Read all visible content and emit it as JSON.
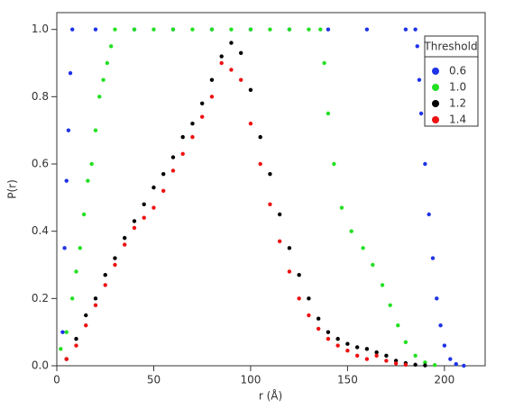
{
  "chart_data": {
    "type": "scatter",
    "x_label": "r (Å)",
    "y_label": "P(r)",
    "xlim": [
      0,
      221
    ],
    "ylim": [
      0,
      1.05
    ],
    "xticks": [
      0,
      50,
      100,
      150,
      200
    ],
    "yticks": [
      {
        "value": 0,
        "label": "0.0"
      },
      0.2,
      0.4,
      0.6,
      0.8,
      {
        "value": 1,
        "label": "1.0"
      }
    ],
    "legend_title": "Threshold",
    "legend_position": "upper right",
    "series": [
      {
        "name": "0.6",
        "color": "#1f33e6",
        "x": [
          3,
          4,
          5,
          6,
          7,
          8,
          20,
          40,
          60,
          80,
          100,
          120,
          140,
          160,
          180,
          185,
          186,
          187,
          188,
          190,
          192,
          194,
          196,
          198,
          200,
          203,
          206,
          210
        ],
        "values": [
          0.1,
          0.35,
          0.55,
          0.7,
          0.87,
          1,
          1,
          1,
          1,
          1,
          1,
          1,
          1,
          1,
          1,
          1,
          0.95,
          0.85,
          0.75,
          0.6,
          0.45,
          0.32,
          0.2,
          0.12,
          0.06,
          0.02,
          0.005,
          0
        ]
      },
      {
        "name": "1.0",
        "color": "#22e022",
        "x": [
          2,
          5,
          8,
          10,
          12,
          14,
          16,
          18,
          20,
          22,
          24,
          26,
          28,
          30,
          40,
          50,
          60,
          70,
          80,
          90,
          100,
          110,
          120,
          130,
          136,
          138,
          140,
          143,
          147,
          152,
          158,
          163,
          168,
          172,
          176,
          180,
          185,
          190,
          195
        ],
        "values": [
          0.05,
          0.1,
          0.2,
          0.28,
          0.35,
          0.45,
          0.55,
          0.6,
          0.7,
          0.8,
          0.85,
          0.9,
          0.95,
          1,
          1,
          1,
          1,
          1,
          1,
          1,
          1,
          1,
          1,
          1,
          1,
          0.9,
          0.75,
          0.6,
          0.47,
          0.4,
          0.35,
          0.3,
          0.24,
          0.18,
          0.12,
          0.07,
          0.03,
          0.01,
          0.002
        ]
      },
      {
        "name": "1.2",
        "color": "#000000",
        "x": [
          5,
          10,
          15,
          20,
          25,
          30,
          35,
          40,
          45,
          50,
          55,
          60,
          65,
          70,
          75,
          80,
          85,
          90,
          95,
          100,
          105,
          110,
          115,
          120,
          125,
          130,
          135,
          140,
          145,
          150,
          155,
          160,
          165,
          170,
          175,
          180,
          185,
          190
        ],
        "values": [
          0.02,
          0.08,
          0.15,
          0.2,
          0.27,
          0.32,
          0.38,
          0.43,
          0.48,
          0.53,
          0.57,
          0.62,
          0.68,
          0.72,
          0.78,
          0.85,
          0.92,
          0.96,
          0.93,
          0.82,
          0.68,
          0.57,
          0.45,
          0.35,
          0.27,
          0.2,
          0.14,
          0.1,
          0.08,
          0.065,
          0.055,
          0.05,
          0.04,
          0.03,
          0.015,
          0.008,
          0.003,
          0.001
        ]
      },
      {
        "name": "1.4",
        "color": "#ee1111",
        "x": [
          5,
          10,
          15,
          20,
          25,
          30,
          35,
          40,
          45,
          50,
          55,
          60,
          65,
          70,
          75,
          80,
          85,
          90,
          95,
          100,
          105,
          110,
          115,
          120,
          125,
          130,
          135,
          140,
          145,
          150,
          155,
          160,
          165,
          170,
          175,
          180
        ],
        "values": [
          0.02,
          0.06,
          0.12,
          0.18,
          0.24,
          0.3,
          0.36,
          0.41,
          0.44,
          0.47,
          0.52,
          0.58,
          0.63,
          0.68,
          0.74,
          0.8,
          0.9,
          0.88,
          0.85,
          0.72,
          0.6,
          0.48,
          0.37,
          0.28,
          0.2,
          0.15,
          0.11,
          0.08,
          0.06,
          0.045,
          0.03,
          0.02,
          0.03,
          0.015,
          0.007,
          0.003
        ]
      }
    ]
  }
}
